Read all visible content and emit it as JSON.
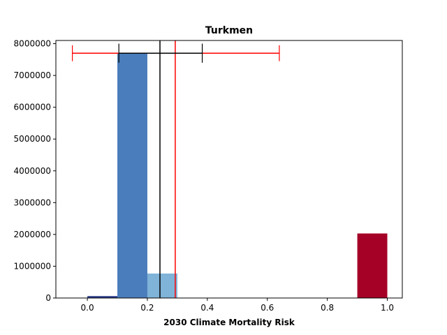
{
  "chart_data": {
    "type": "bar",
    "title": "Turkmen",
    "xlabel": "2030 Climate Mortality Risk",
    "ylabel": "",
    "xlim": [
      -0.105,
      1.05
    ],
    "ylim": [
      0,
      8100000
    ],
    "x_ticks": [
      0.0,
      0.2,
      0.4,
      0.6,
      0.8,
      1.0
    ],
    "x_tick_labels": [
      "0.0",
      "0.2",
      "0.4",
      "0.6",
      "0.8",
      "1.0"
    ],
    "y_ticks": [
      0,
      1000000,
      2000000,
      3000000,
      4000000,
      5000000,
      6000000,
      7000000,
      8000000
    ],
    "y_tick_labels": [
      "0",
      "1000000",
      "2000000",
      "3000000",
      "4000000",
      "5000000",
      "6000000",
      "7000000",
      "8000000"
    ],
    "bars": [
      {
        "x0": 0.0,
        "x1": 0.1,
        "value": 60000,
        "color": "#283a88"
      },
      {
        "x0": 0.1,
        "x1": 0.2,
        "value": 7700000,
        "color": "#4a7dbb"
      },
      {
        "x0": 0.2,
        "x1": 0.3,
        "value": 770000,
        "color": "#7fb3d8"
      },
      {
        "x0": 0.9,
        "x1": 1.0,
        "value": 2030000,
        "color": "#a50026"
      }
    ],
    "vertical_lines": [
      {
        "x": 0.242,
        "color": "#000000"
      },
      {
        "x": 0.293,
        "color": "#ff0000"
      }
    ],
    "error_bars": [
      {
        "y": 7700000,
        "x_low": -0.05,
        "x_high": 0.64,
        "cap_low": 7450000,
        "cap_high": 7950000,
        "color": "#ff0000"
      },
      {
        "y": 7700000,
        "x_low": 0.105,
        "x_high": 0.383,
        "cap_low": 7400000,
        "cap_high": 8000000,
        "color": "#000000"
      }
    ],
    "grid": false,
    "legend": "none"
  }
}
